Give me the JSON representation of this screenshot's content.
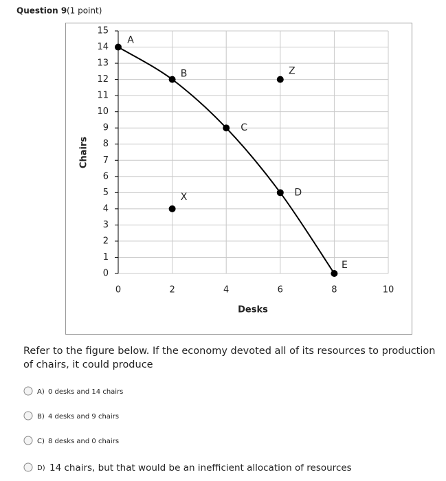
{
  "header": {
    "title": "Question 9",
    "points": "(1 point)"
  },
  "chart_data": {
    "type": "scatter",
    "xlabel": "Desks",
    "ylabel": "Chairs",
    "xlim": [
      0,
      10
    ],
    "xticks": [
      0,
      2,
      4,
      6,
      8,
      10
    ],
    "ylim": [
      0,
      15
    ],
    "yticks": [
      0,
      1,
      2,
      3,
      4,
      5,
      6,
      7,
      8,
      9,
      10,
      11,
      12,
      13,
      14,
      15
    ],
    "grid": true,
    "color": "#000000",
    "series": [
      {
        "x": [
          0,
          2,
          4,
          6,
          8
        ],
        "values": [
          14,
          12,
          9,
          5,
          0
        ],
        "point_labels": [
          "A",
          "B",
          "C",
          "D",
          "E"
        ],
        "line": true
      },
      {
        "x": [
          2,
          6
        ],
        "values": [
          4,
          12
        ],
        "point_labels": [
          "X",
          "Z"
        ],
        "line": false
      }
    ]
  },
  "question": {
    "lines": [
      "Refer to the figure below. If the economy devoted all of its resources to production",
      "of chairs, it could produce"
    ]
  },
  "options": [
    {
      "letter": "A)",
      "text": "0 desks and 14 chairs"
    },
    {
      "letter": "B)",
      "text": "4 desks and 9 chairs"
    },
    {
      "letter": "C)",
      "text": "8 desks and 0 chairs"
    },
    {
      "letter": "D)",
      "text": "14 chairs, but that would be an inefficient allocation of resources"
    }
  ]
}
